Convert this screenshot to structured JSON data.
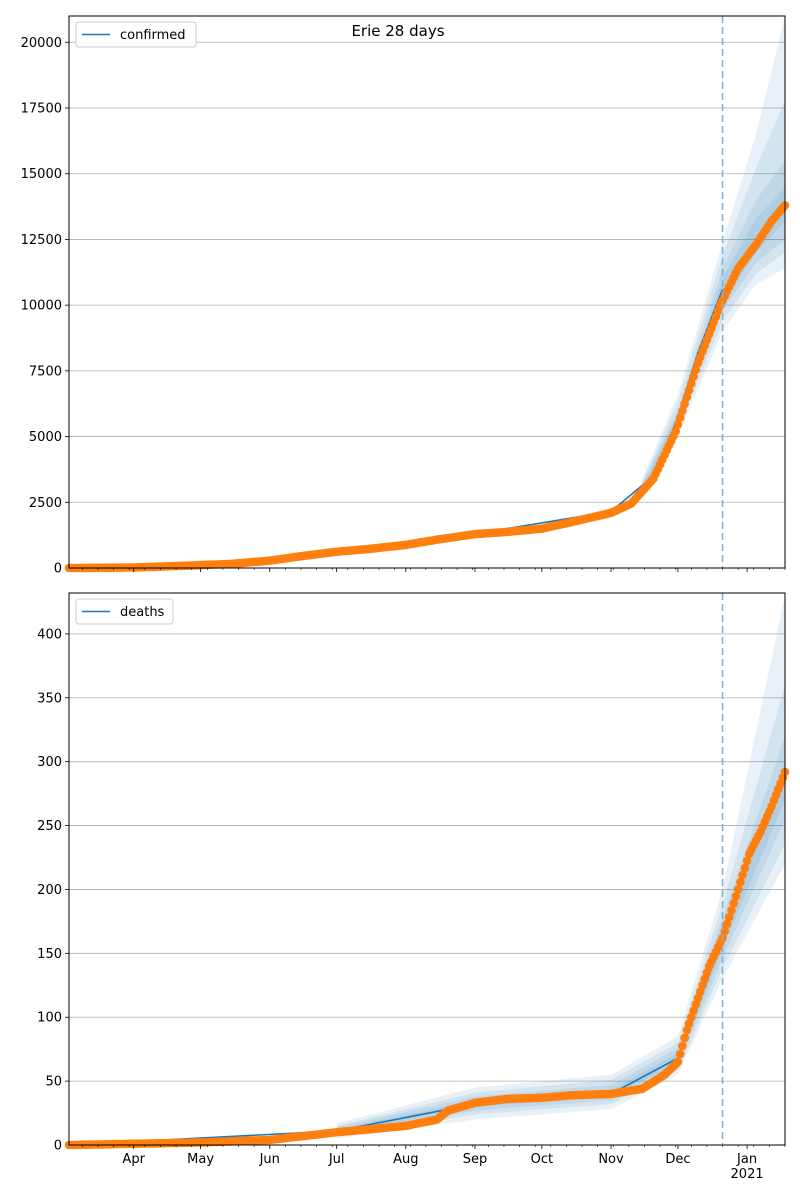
{
  "figure": {
    "suptitle": "Erie 28 days"
  },
  "chart_data": [
    {
      "type": "line",
      "title": "Erie 28 days",
      "legend": {
        "entries": [
          "confirmed"
        ],
        "placement": "top-left"
      },
      "series_name": "confirmed",
      "x_range": [
        "2020-03-03",
        "2021-01-18"
      ],
      "ylim": [
        0,
        21000
      ],
      "yticks": [
        0,
        2500,
        5000,
        7500,
        10000,
        12500,
        15000,
        17500,
        20000
      ],
      "grid": "horizontal",
      "forecast_start": "2020-12-21",
      "observed": [
        [
          "2020-03-03",
          0
        ],
        [
          "2020-04-01",
          20
        ],
        [
          "2020-04-15",
          60
        ],
        [
          "2020-05-01",
          110
        ],
        [
          "2020-05-15",
          160
        ],
        [
          "2020-06-01",
          280
        ],
        [
          "2020-06-15",
          450
        ],
        [
          "2020-07-01",
          620
        ],
        [
          "2020-07-15",
          720
        ],
        [
          "2020-08-01",
          880
        ],
        [
          "2020-08-15",
          1080
        ],
        [
          "2020-09-01",
          1290
        ],
        [
          "2020-09-15",
          1370
        ],
        [
          "2020-10-01",
          1500
        ],
        [
          "2020-10-15",
          1760
        ],
        [
          "2020-11-01",
          2100
        ],
        [
          "2020-11-10",
          2450
        ],
        [
          "2020-11-20",
          3400
        ],
        [
          "2020-11-30",
          5200
        ],
        [
          "2020-12-10",
          7800
        ],
        [
          "2020-12-20",
          10000
        ],
        [
          "2020-12-28",
          11400
        ],
        [
          "2021-01-05",
          12300
        ],
        [
          "2021-01-12",
          13200
        ],
        [
          "2021-01-18",
          13800
        ]
      ],
      "model": [
        [
          "2020-03-03",
          0
        ],
        [
          "2020-06-01",
          270
        ],
        [
          "2020-09-01",
          1300
        ],
        [
          "2020-11-01",
          2150
        ],
        [
          "2020-11-20",
          3500
        ],
        [
          "2020-12-01",
          5700
        ],
        [
          "2020-12-10",
          8200
        ],
        [
          "2020-12-21",
          10600
        ]
      ],
      "bands": [
        {
          "lower": [
            [
              "2020-11-15",
              2600
            ],
            [
              "2020-12-01",
              5000
            ],
            [
              "2020-12-21",
              9000
            ],
            [
              "2021-01-05",
              10800
            ],
            [
              "2021-01-18",
              11400
            ]
          ],
          "upper": [
            [
              "2020-11-15",
              3400
            ],
            [
              "2020-12-01",
              6600
            ],
            [
              "2020-12-21",
              12400
            ],
            [
              "2021-01-05",
              16500
            ],
            [
              "2021-01-18",
              21000
            ]
          ]
        },
        {
          "lower": [
            [
              "2020-11-15",
              2700
            ],
            [
              "2020-12-01",
              5200
            ],
            [
              "2020-12-21",
              9400
            ],
            [
              "2021-01-05",
              11200
            ],
            [
              "2021-01-18",
              12000
            ]
          ],
          "upper": [
            [
              "2020-11-15",
              3300
            ],
            [
              "2020-12-01",
              6300
            ],
            [
              "2020-12-21",
              11900
            ],
            [
              "2021-01-05",
              15200
            ],
            [
              "2021-01-18",
              17800
            ]
          ]
        },
        {
          "lower": [
            [
              "2020-11-15",
              2800
            ],
            [
              "2020-12-01",
              5400
            ],
            [
              "2020-12-21",
              9800
            ],
            [
              "2021-01-05",
              11600
            ],
            [
              "2021-01-18",
              12500
            ]
          ],
          "upper": [
            [
              "2020-11-15",
              3200
            ],
            [
              "2020-12-01",
              6000
            ],
            [
              "2020-12-21",
              11400
            ],
            [
              "2021-01-05",
              14000
            ],
            [
              "2021-01-18",
              15500
            ]
          ]
        },
        {
          "lower": [
            [
              "2020-11-15",
              2900
            ],
            [
              "2020-12-01",
              5550
            ],
            [
              "2020-12-21",
              10100
            ],
            [
              "2021-01-05",
              12000
            ],
            [
              "2021-01-18",
              13200
            ]
          ],
          "upper": [
            [
              "2020-11-15",
              3100
            ],
            [
              "2020-12-01",
              5850
            ],
            [
              "2020-12-21",
              11000
            ],
            [
              "2021-01-05",
              13300
            ],
            [
              "2021-01-18",
              14500
            ]
          ]
        }
      ]
    },
    {
      "type": "line",
      "legend": {
        "entries": [
          "deaths"
        ],
        "placement": "top-left"
      },
      "series_name": "deaths",
      "x_range": [
        "2020-03-03",
        "2021-01-18"
      ],
      "xticks": [
        {
          "date": "2020-04-01",
          "label": "Apr"
        },
        {
          "date": "2020-05-01",
          "label": "May"
        },
        {
          "date": "2020-06-01",
          "label": "Jun"
        },
        {
          "date": "2020-07-01",
          "label": "Jul"
        },
        {
          "date": "2020-08-01",
          "label": "Aug"
        },
        {
          "date": "2020-09-01",
          "label": "Sep"
        },
        {
          "date": "2020-10-01",
          "label": "Oct"
        },
        {
          "date": "2020-11-01",
          "label": "Nov"
        },
        {
          "date": "2020-12-01",
          "label": "Dec"
        },
        {
          "date": "2021-01-01",
          "label": "Jan",
          "sublabel": "2021"
        }
      ],
      "ylim": [
        0,
        432
      ],
      "yticks": [
        0,
        50,
        100,
        150,
        200,
        250,
        300,
        350,
        400
      ],
      "grid": "horizontal",
      "forecast_start": "2020-12-21",
      "observed": [
        [
          "2020-03-03",
          0
        ],
        [
          "2020-05-01",
          2
        ],
        [
          "2020-06-01",
          4
        ],
        [
          "2020-07-01",
          10
        ],
        [
          "2020-07-20",
          13
        ],
        [
          "2020-08-01",
          15
        ],
        [
          "2020-08-15",
          20
        ],
        [
          "2020-08-20",
          27
        ],
        [
          "2020-09-01",
          33
        ],
        [
          "2020-09-15",
          36
        ],
        [
          "2020-10-01",
          37
        ],
        [
          "2020-10-15",
          39
        ],
        [
          "2020-11-01",
          40
        ],
        [
          "2020-11-15",
          44
        ],
        [
          "2020-11-25",
          55
        ],
        [
          "2020-12-01",
          65
        ],
        [
          "2020-12-05",
          90
        ],
        [
          "2020-12-10",
          115
        ],
        [
          "2020-12-15",
          140
        ],
        [
          "2020-12-21",
          162
        ],
        [
          "2020-12-28",
          200
        ],
        [
          "2021-01-02",
          228
        ],
        [
          "2021-01-07",
          245
        ],
        [
          "2021-01-12",
          265
        ],
        [
          "2021-01-18",
          292
        ]
      ],
      "model": [
        [
          "2020-03-03",
          0
        ],
        [
          "2020-07-01",
          11
        ],
        [
          "2020-09-01",
          32
        ],
        [
          "2020-11-01",
          40
        ],
        [
          "2020-12-01",
          68
        ],
        [
          "2020-12-10",
          110
        ],
        [
          "2020-12-21",
          162
        ],
        [
          "2021-01-01",
          225
        ],
        [
          "2021-01-10",
          255
        ],
        [
          "2021-01-18",
          285
        ]
      ],
      "bands": [
        {
          "lower": [
            [
              "2020-07-01",
              5
            ],
            [
              "2020-09-01",
              20
            ],
            [
              "2020-11-01",
              28
            ],
            [
              "2020-12-01",
              55
            ],
            [
              "2020-12-21",
              130
            ],
            [
              "2021-01-18",
              220
            ]
          ],
          "upper": [
            [
              "2020-07-01",
              17
            ],
            [
              "2020-09-01",
              45
            ],
            [
              "2020-11-01",
              55
            ],
            [
              "2020-12-01",
              85
            ],
            [
              "2020-12-21",
              200
            ],
            [
              "2021-01-18",
              430
            ]
          ]
        },
        {
          "lower": [
            [
              "2020-07-01",
              7
            ],
            [
              "2020-09-01",
              24
            ],
            [
              "2020-11-01",
              32
            ],
            [
              "2020-12-01",
              58
            ],
            [
              "2020-12-21",
              138
            ],
            [
              "2021-01-18",
              235
            ]
          ],
          "upper": [
            [
              "2020-07-01",
              15
            ],
            [
              "2020-09-01",
              41
            ],
            [
              "2020-11-01",
              51
            ],
            [
              "2020-12-01",
              80
            ],
            [
              "2020-12-21",
              188
            ],
            [
              "2021-01-18",
              360
            ]
          ]
        },
        {
          "lower": [
            [
              "2020-07-01",
              8
            ],
            [
              "2020-09-01",
              27
            ],
            [
              "2020-11-01",
              35
            ],
            [
              "2020-12-01",
              61
            ],
            [
              "2020-12-21",
              146
            ],
            [
              "2021-01-18",
              255
            ]
          ],
          "upper": [
            [
              "2020-07-01",
              14
            ],
            [
              "2020-09-01",
              38
            ],
            [
              "2020-11-01",
              47
            ],
            [
              "2020-12-01",
              76
            ],
            [
              "2020-12-21",
              178
            ],
            [
              "2021-01-18",
              320
            ]
          ]
        },
        {
          "lower": [
            [
              "2020-07-01",
              9
            ],
            [
              "2020-09-01",
              30
            ],
            [
              "2020-11-01",
              38
            ],
            [
              "2020-12-01",
              64
            ],
            [
              "2020-12-21",
              154
            ],
            [
              "2021-01-18",
              270
            ]
          ],
          "upper": [
            [
              "2020-07-01",
              12
            ],
            [
              "2020-09-01",
              35
            ],
            [
              "2020-11-01",
              43
            ],
            [
              "2020-12-01",
              72
            ],
            [
              "2020-12-21",
              170
            ],
            [
              "2021-01-18",
              300
            ]
          ]
        }
      ]
    }
  ],
  "colors": {
    "model_line": "#1f77b4",
    "observed_points": "#ff7f0e",
    "band_fill": "#1f77b4",
    "forecast_line": "#7fb3d5",
    "grid": "#b0b0b0"
  }
}
